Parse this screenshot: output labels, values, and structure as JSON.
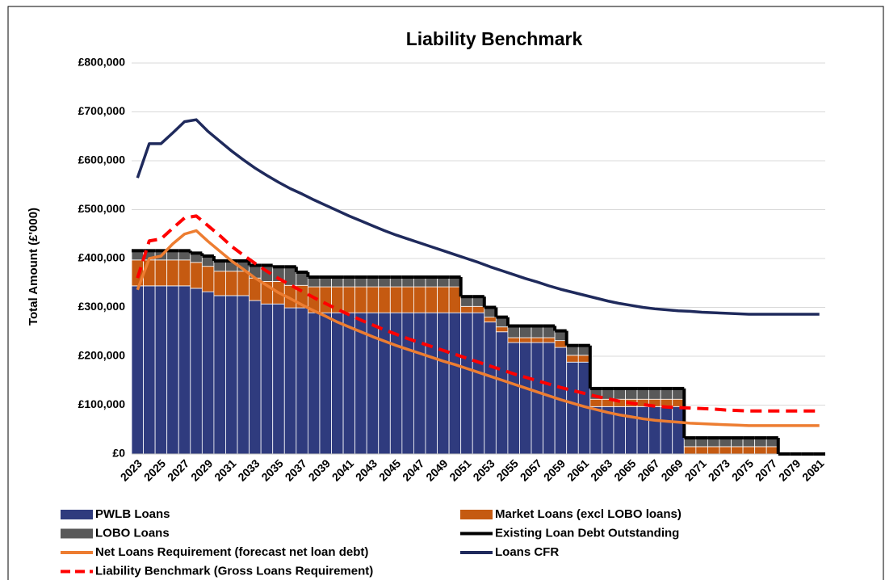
{
  "chart_data": {
    "type": "bar",
    "title": "Liability Benchmark",
    "y_label": "Total Amount (£'000)",
    "categories": [
      "2023",
      null,
      "2025",
      null,
      "2027",
      null,
      "2029",
      null,
      "2031",
      null,
      "2033",
      null,
      "2035",
      null,
      "2037",
      null,
      "2039",
      null,
      "2041",
      null,
      "2043",
      null,
      "2045",
      null,
      "2047",
      null,
      "2049",
      null,
      "2051",
      null,
      "2053",
      null,
      "2055",
      null,
      "2057",
      null,
      "2059",
      null,
      "2061",
      null,
      "2063",
      null,
      "2065",
      null,
      "2067",
      null,
      "2069",
      null,
      "2071",
      null,
      "2073",
      null,
      "2075",
      null,
      "2077",
      null,
      "2079",
      null,
      "2081"
    ],
    "ylim": [
      0,
      800000
    ],
    "yticks": [
      {
        "value": 0,
        "label": "£0"
      },
      {
        "value": 100000,
        "label": "£100,000"
      },
      {
        "value": 200000,
        "label": "£200,000"
      },
      {
        "value": 300000,
        "label": "£300,000"
      },
      {
        "value": 400000,
        "label": "£400,000"
      },
      {
        "value": 500000,
        "label": "£500,000"
      },
      {
        "value": 600000,
        "label": "£600,000"
      },
      {
        "value": 700000,
        "label": "£700,000"
      },
      {
        "value": 800000,
        "label": "£800,000"
      }
    ],
    "grid": true,
    "series": [
      {
        "name": "PWLB Loans",
        "type": "bar",
        "color": "#2f3b7e",
        "values": [
          344000,
          344000,
          344000,
          344000,
          344000,
          339000,
          332000,
          324000,
          324000,
          324000,
          314000,
          307000,
          307000,
          299000,
          299000,
          289000,
          289000,
          289000,
          289000,
          289000,
          289000,
          289000,
          289000,
          289000,
          289000,
          289000,
          289000,
          289000,
          289000,
          289000,
          270000,
          250000,
          228000,
          228000,
          228000,
          228000,
          218000,
          188000,
          188000,
          97000,
          97000,
          97000,
          97000,
          97000,
          97000,
          97000,
          97000,
          0,
          0,
          0,
          0,
          0,
          0,
          0,
          0,
          0,
          0,
          0,
          0
        ]
      },
      {
        "name": "Market Loans (excl LOBO loans)",
        "type": "bar",
        "color": "#c55a11",
        "values": [
          53000,
          53000,
          53000,
          53000,
          53000,
          53000,
          52000,
          50000,
          50000,
          50000,
          46000,
          46000,
          46000,
          46000,
          46000,
          53000,
          53000,
          53000,
          53000,
          53000,
          53000,
          53000,
          53000,
          53000,
          53000,
          53000,
          53000,
          53000,
          13000,
          13000,
          10000,
          10000,
          10000,
          10000,
          10000,
          10000,
          14000,
          14000,
          14000,
          15000,
          15000,
          15000,
          15000,
          15000,
          15000,
          15000,
          15000,
          15000,
          15000,
          15000,
          15000,
          15000,
          15000,
          15000,
          15000,
          0,
          0,
          0,
          0
        ]
      },
      {
        "name": "LOBO Loans",
        "type": "bar",
        "color": "#595959",
        "values": [
          19000,
          19000,
          19000,
          19000,
          19000,
          19000,
          21000,
          21000,
          21000,
          21000,
          26000,
          33000,
          30000,
          38000,
          27000,
          20000,
          20000,
          20000,
          20000,
          20000,
          20000,
          20000,
          20000,
          20000,
          20000,
          20000,
          20000,
          20000,
          20000,
          20000,
          20000,
          20000,
          24000,
          24000,
          24000,
          24000,
          20000,
          20000,
          20000,
          22000,
          22000,
          22000,
          22000,
          22000,
          22000,
          22000,
          22000,
          18000,
          18000,
          18000,
          18000,
          18000,
          18000,
          18000,
          18000,
          0,
          0,
          0,
          0
        ]
      },
      {
        "name": "Existing Loan Debt Outstanding",
        "type": "step",
        "color": "#000000",
        "values": [
          416000,
          416000,
          416000,
          416000,
          416000,
          411000,
          405000,
          395000,
          395000,
          395000,
          386000,
          386000,
          383000,
          383000,
          372000,
          362000,
          362000,
          362000,
          362000,
          362000,
          362000,
          362000,
          362000,
          362000,
          362000,
          362000,
          362000,
          362000,
          322000,
          322000,
          300000,
          280000,
          262000,
          262000,
          262000,
          262000,
          252000,
          222000,
          222000,
          134000,
          134000,
          134000,
          134000,
          134000,
          134000,
          134000,
          134000,
          33000,
          33000,
          33000,
          33000,
          33000,
          33000,
          33000,
          33000,
          0,
          0,
          0,
          0
        ]
      },
      {
        "name": "Net Loans Requirement (forecast net loan debt)",
        "type": "line",
        "color": "#ed7d31",
        "values": [
          336000,
          400000,
          405000,
          430000,
          450000,
          457000,
          435000,
          415000,
          395000,
          378000,
          360000,
          345000,
          330000,
          318000,
          305000,
          293000,
          282000,
          270000,
          260000,
          250000,
          240000,
          231000,
          222000,
          214000,
          206000,
          198000,
          190000,
          183000,
          175000,
          167000,
          159000,
          151000,
          143000,
          135000,
          127000,
          119000,
          111000,
          104000,
          97000,
          91000,
          85000,
          80000,
          76000,
          72000,
          69000,
          67000,
          65000,
          63000,
          62000,
          61000,
          60000,
          59000,
          58000,
          58000,
          58000,
          58000,
          58000,
          58000,
          58000
        ]
      },
      {
        "name": "Loans CFR",
        "type": "line",
        "color": "#1f2a5c",
        "values": [
          565000,
          635000,
          635000,
          657000,
          680000,
          684000,
          660000,
          640000,
          620000,
          602000,
          585000,
          570000,
          556000,
          543000,
          532000,
          520000,
          509000,
          498000,
          487000,
          477000,
          467000,
          457000,
          448000,
          440000,
          432000,
          424000,
          416000,
          408000,
          400000,
          392000,
          383000,
          375000,
          367000,
          359000,
          352000,
          344000,
          337000,
          331000,
          325000,
          319000,
          313000,
          308000,
          304000,
          300000,
          297000,
          295000,
          293000,
          292000,
          290000,
          289000,
          288000,
          287000,
          286000,
          286000,
          286000,
          286000,
          286000,
          286000,
          286000
        ]
      },
      {
        "name": "Liability Benchmark (Gross Loans Requirement)",
        "type": "dashed",
        "color": "#ff0000",
        "values": [
          360000,
          436000,
          440000,
          462000,
          483000,
          487000,
          467000,
          447000,
          425000,
          407000,
          390000,
          374000,
          359000,
          346000,
          333000,
          320000,
          308000,
          296000,
          285000,
          274000,
          264000,
          254000,
          245000,
          236000,
          228000,
          220000,
          212000,
          204000,
          196000,
          188000,
          180000,
          172000,
          164000,
          157000,
          150000,
          143000,
          136000,
          130000,
          124000,
          118000,
          113000,
          108000,
          104000,
          101000,
          98000,
          96000,
          95000,
          94000,
          93000,
          92000,
          90000,
          89000,
          88000,
          88000,
          88000,
          88000,
          88000,
          88000,
          88000
        ]
      }
    ]
  }
}
